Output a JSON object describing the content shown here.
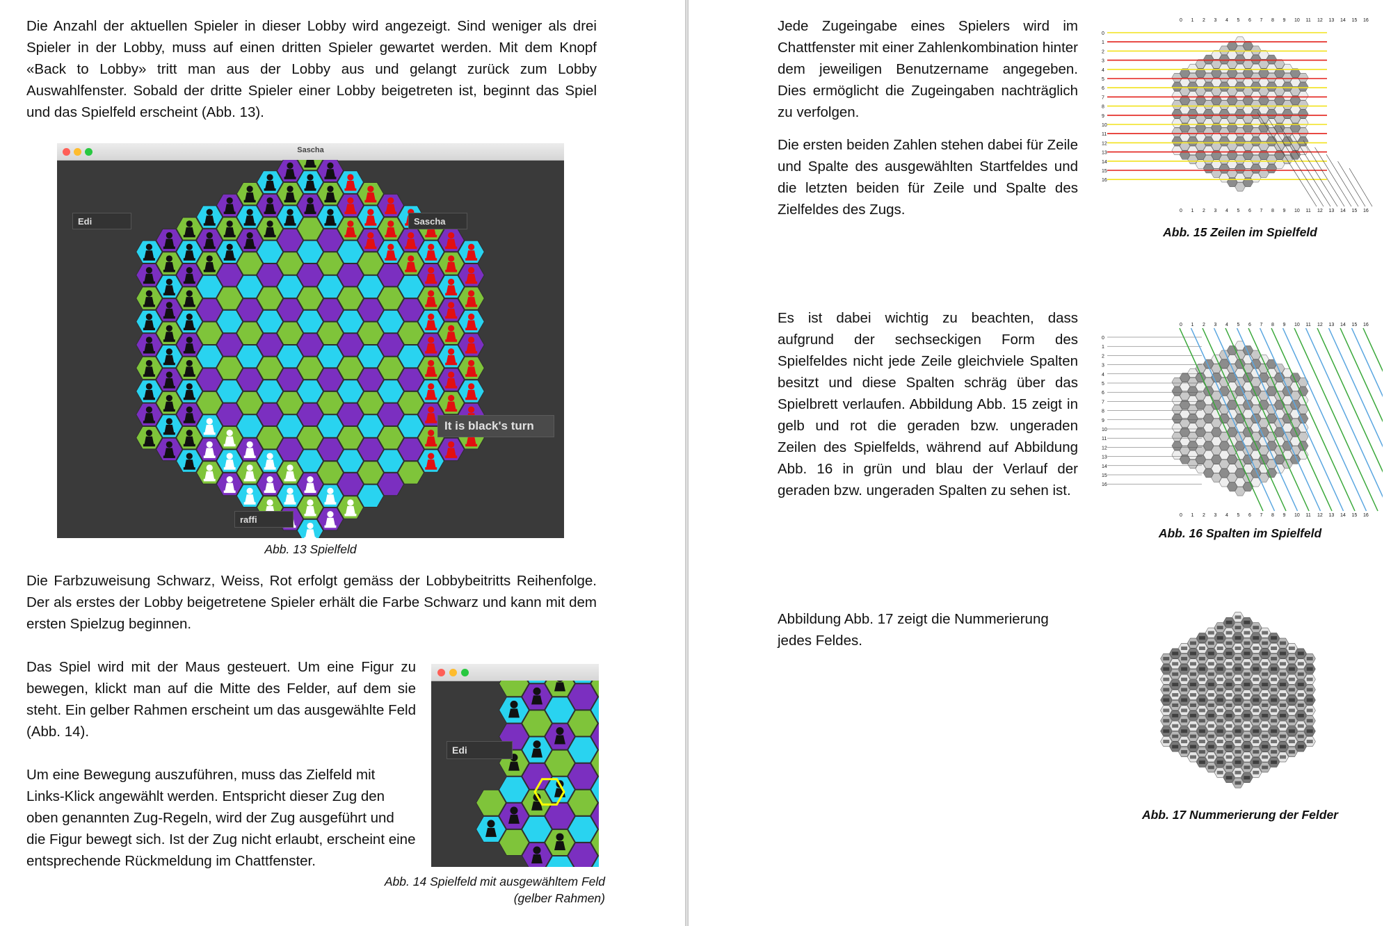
{
  "left_page": {
    "para1": "Die Anzahl der aktuellen Spieler in dieser Lobby wird angezeigt. Sind weniger als drei Spieler in der Lobby, muss auf einen dritten Spieler gewartet werden. Mit dem Knopf «Back to Lobby» tritt man aus der Lobby aus und gelangt zurück zum Lobby Auswahlfenster. Sobald der dritte Spieler einer Lobby beigetreten ist, beginnt das Spiel und das Spielfeld erscheint (Abb. 13).",
    "fig13": {
      "window_title": "Sascha",
      "player_left": "Edi",
      "player_right": "Sascha",
      "player_bottom": "raffi",
      "turn_text": "It is black's turn",
      "caption": "Abb. 13 Spielfeld"
    },
    "para2": "Die Farbzuweisung Schwarz, Weiss, Rot erfolgt gemäss der Lobbybeitritts Reihenfolge. Der als erstes der Lobby beigetretene Spieler erhält die Farbe Schwarz und kann mit dem ersten Spielzug beginnen.",
    "para3": "Das Spiel wird mit der Maus gesteuert. Um eine Figur zu bewegen, klickt man auf die Mitte des Felder, auf dem sie steht. Ein gelber Rahmen erscheint um das ausgewählte Feld (Abb. 14).",
    "para4": "Um eine Bewegung auszuführen, muss das Zielfeld mit Links-Klick angewählt werden. Entspricht dieser Zug den oben genannten Zug-Regeln, wird der Zug ausgeführt und die Figur bewegt sich. Ist der Zug nicht erlaubt, erscheint eine entsprechende Rückmeldung im Chattfenster.",
    "fig14": {
      "player_left": "Edi",
      "caption": "Abb. 14 Spielfeld mit ausgewähltem Feld (gelber Rahmen)"
    }
  },
  "right_page": {
    "para1": "Jede Zugeingabe eines Spielers wird im Chattfenster mit einer Zahlenkombination hinter dem jeweiligen Benutzername angegeben. Dies ermöglicht die Zugeingaben nachträglich zu verfolgen.",
    "para2": "Die ersten beiden Zahlen stehen dabei für Zeile und Spalte des ausgewählten Startfeldes und die letzten beiden für Zeile und Spalte des Zielfeldes des Zugs.",
    "fig15": {
      "caption": "Abb. 15 Zeilen im Spielfeld"
    },
    "para3": "Es ist dabei wichtig zu beachten, dass aufgrund der sechseckigen Form des Spielfeldes nicht jede Zeile gleichviele Spalten besitzt und diese Spalten schräg über das Spielbrett verlaufen. Abbildung Abb. 15 zeigt in gelb und rot die geraden bzw. ungeraden Zeilen des Spielfelds, während auf Abbildung Abb. 16 in grün und blau der Verlauf der geraden bzw. ungeraden Spalten zu sehen ist.",
    "fig16": {
      "caption": "Abb. 16 Spalten im Spielfeld"
    },
    "para4": "Abbildung Abb. 17 zeigt die Nummerierung jedes Feldes.",
    "fig17": {
      "caption": "Abb. 17 Nummerierung der Felder"
    }
  },
  "board_colors": {
    "purple": "#7b2fc0",
    "cyan": "#29d3f0",
    "green": "#7fc43a",
    "bg": "#3a3a3a"
  },
  "row_numbers": [
    "0",
    "1",
    "2",
    "3",
    "4",
    "5",
    "6",
    "7",
    "8",
    "9",
    "10",
    "11",
    "12",
    "13",
    "14",
    "15",
    "16"
  ],
  "col_numbers": [
    "0",
    "1",
    "2",
    "3",
    "4",
    "5",
    "6",
    "7",
    "8",
    "9",
    "10",
    "11",
    "12",
    "13",
    "14",
    "15",
    "16"
  ]
}
